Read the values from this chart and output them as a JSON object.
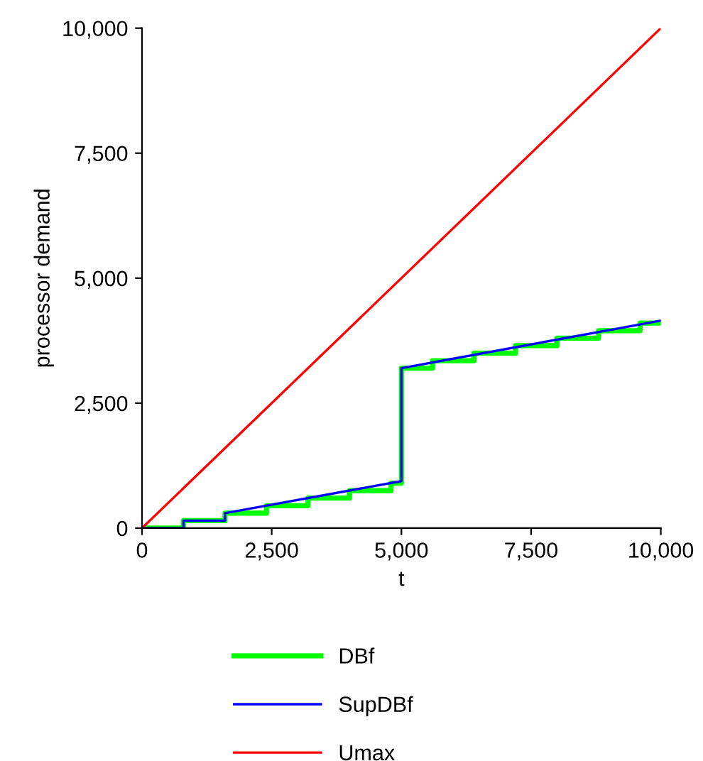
{
  "chart_data": {
    "type": "line",
    "xlabel": "t",
    "ylabel": "processor demand",
    "xlim": [
      0,
      10000
    ],
    "ylim": [
      0,
      10000
    ],
    "xticks": [
      0,
      {
        "value": 2500,
        "label": "2,500"
      },
      {
        "value": 5000,
        "label": "5,000"
      },
      {
        "value": 7500,
        "label": "7,500"
      },
      {
        "value": 10000,
        "label": "10,000"
      }
    ],
    "yticks": [
      0,
      {
        "value": 2500,
        "label": "2,500"
      },
      {
        "value": 5000,
        "label": "5,000"
      },
      {
        "value": 7500,
        "label": "7,500"
      },
      {
        "value": 10000,
        "label": "10,000"
      }
    ],
    "grid": false,
    "legend": "bottom",
    "series": [
      {
        "name": "DBf",
        "type": "step",
        "color": "#00ff00",
        "x": [
          0,
          800,
          1600,
          2400,
          3200,
          4000,
          4800,
          5000,
          5600,
          6400,
          7200,
          8000,
          8800,
          9600,
          10000
        ],
        "values": [
          0,
          150,
          300,
          450,
          600,
          750,
          900,
          3200,
          3350,
          3500,
          3650,
          3800,
          3950,
          4100,
          4100
        ]
      },
      {
        "name": "SupDBf",
        "color": "#0000ff",
        "x": [
          0,
          800,
          800,
          1600,
          1600,
          5000,
          5000,
          10000
        ],
        "values": [
          0,
          0,
          150,
          150,
          300,
          940,
          3200,
          4150
        ]
      },
      {
        "name": "Umax",
        "color": "#ff0000",
        "x": [
          0,
          10000
        ],
        "values": [
          0,
          10000
        ]
      }
    ]
  }
}
